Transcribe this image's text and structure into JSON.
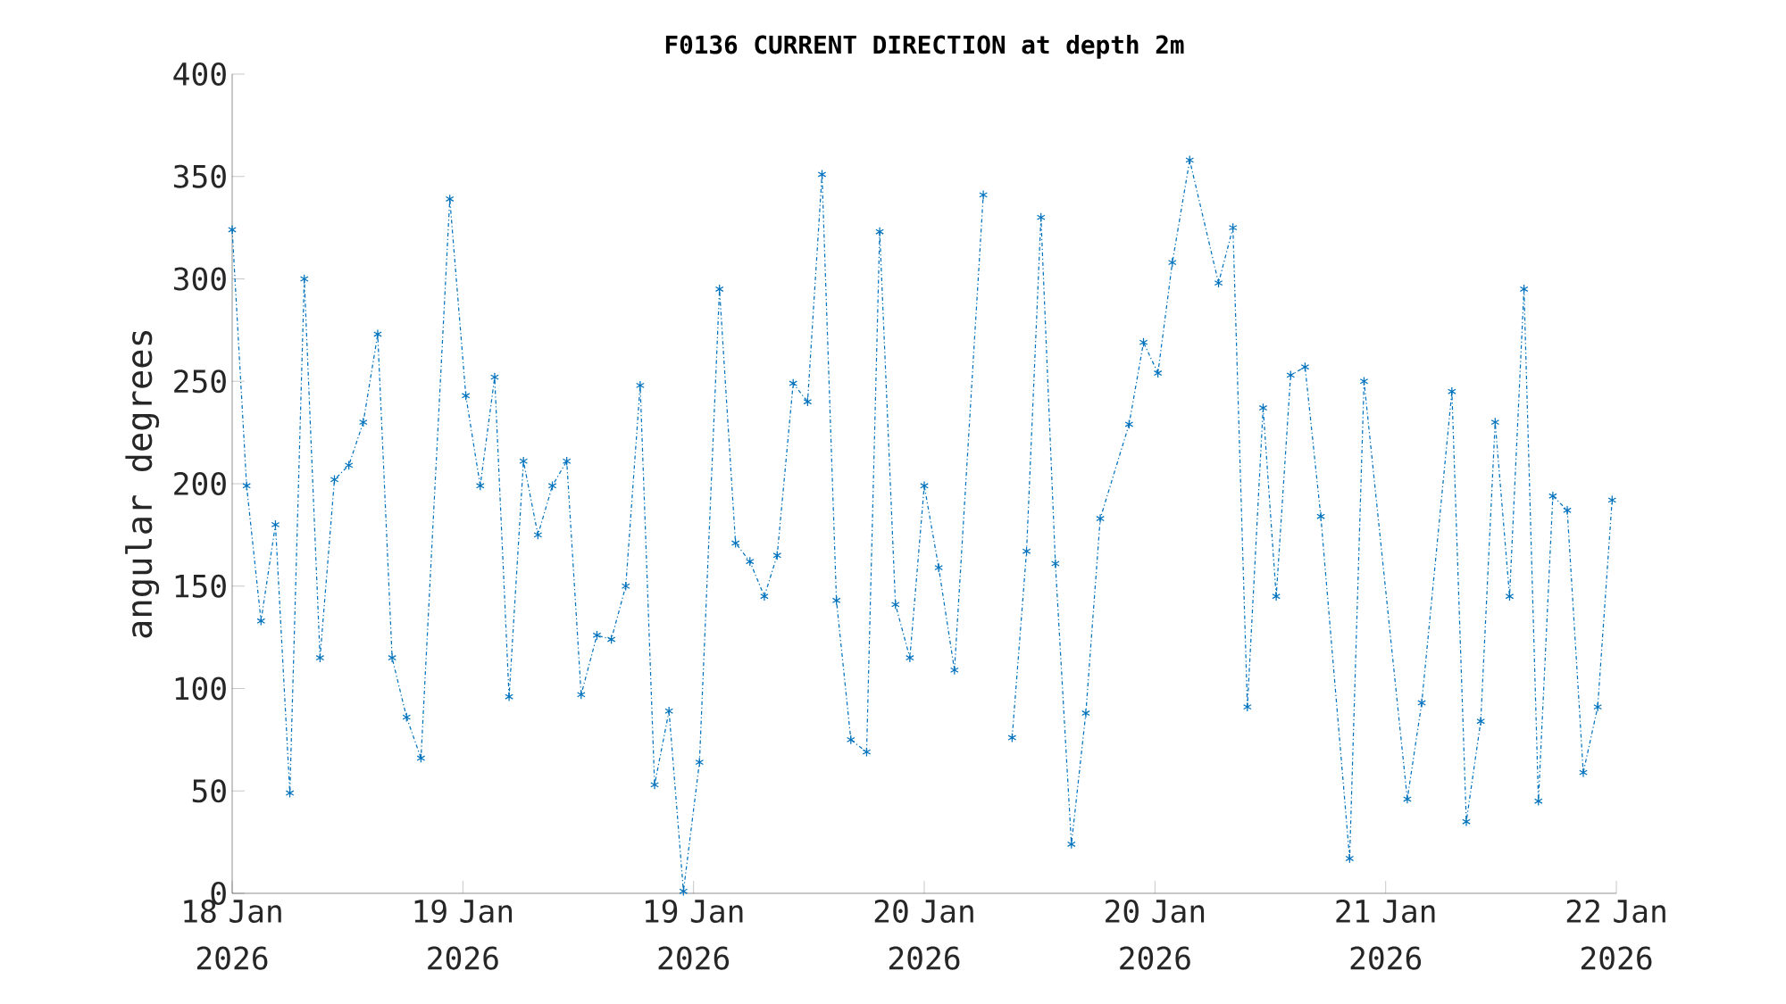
{
  "chart_data": {
    "type": "line",
    "title": "F0136 CURRENT DIRECTION at depth 2m",
    "ylabel": "angular degrees",
    "xlim": [
      "2026-01-18T12:00",
      "2026-01-22T02:24"
    ],
    "ylim": [
      0,
      400
    ],
    "xticks": [
      {
        "value": "2026-01-18T12:00",
        "label": "18 Jan 2026"
      },
      {
        "value": "2026-01-19T02:24",
        "label": "19 Jan 2026"
      },
      {
        "value": "2026-01-19T16:48",
        "label": "19 Jan 2026"
      },
      {
        "value": "2026-01-20T07:12",
        "label": "20 Jan 2026"
      },
      {
        "value": "2026-01-20T21:36",
        "label": "20 Jan 2026"
      },
      {
        "value": "2026-01-21T12:00",
        "label": "21 Jan 2026"
      },
      {
        "value": "2026-01-22T02:24",
        "label": "22 Jan 2026"
      }
    ],
    "yticks": [
      0,
      50,
      100,
      150,
      200,
      250,
      300,
      350,
      400
    ],
    "marker": "cross",
    "line_style": "dashdot",
    "series": [
      {
        "color": "#0072bd",
        "x": [
          "2026-01-18T12:00",
          "2026-01-18T12:54",
          "2026-01-18T13:48",
          "2026-01-18T14:42",
          "2026-01-18T15:36",
          "2026-01-18T16:30",
          "2026-01-18T17:29",
          "2026-01-18T18:23",
          "2026-01-18T19:17",
          "2026-01-18T20:11",
          "2026-01-18T21:05",
          "2026-01-18T21:59",
          "2026-01-18T22:53",
          "2026-01-18T23:47",
          "2026-01-19T01:35",
          "2026-01-19T02:35",
          "2026-01-19T03:29",
          "2026-01-19T04:23",
          "2026-01-19T05:17",
          "2026-01-19T06:11",
          "2026-01-19T07:05",
          "2026-01-19T07:59",
          "2026-01-19T08:53",
          "2026-01-19T09:47",
          "2026-01-19T10:46",
          "2026-01-19T11:40",
          "2026-01-19T12:34",
          "2026-01-19T13:28",
          "2026-01-19T14:22",
          "2026-01-19T15:16",
          "2026-01-19T16:10",
          "2026-01-19T17:10",
          "2026-01-19T18:25",
          "2026-01-19T19:25",
          "2026-01-19T20:19",
          "2026-01-19T21:13",
          "2026-01-19T22:01",
          "2026-01-19T23:01",
          "2026-01-19T23:55",
          "2026-01-20T00:49",
          "2026-01-20T01:43",
          "2026-01-20T02:37",
          "2026-01-20T03:36",
          "2026-01-20T04:25",
          "2026-01-20T05:24",
          "2026-01-20T06:18",
          "2026-01-20T07:12",
          "2026-01-20T08:06",
          "2026-01-20T09:05",
          "2026-01-20T10:53",
          "2026-01-20T11:47",
          "2026-01-20T12:41",
          "2026-01-20T13:35",
          "2026-01-20T14:29",
          "2026-01-20T15:23",
          "2026-01-20T16:23",
          "2026-01-20T17:17",
          "2026-01-20T18:11",
          "2026-01-20T19:59",
          "2026-01-20T20:53",
          "2026-01-20T21:47",
          "2026-01-20T22:41",
          "2026-01-20T23:46",
          "2026-01-21T01:34",
          "2026-01-21T02:28",
          "2026-01-21T03:22",
          "2026-01-21T04:21",
          "2026-01-21T05:10",
          "2026-01-21T06:04",
          "2026-01-21T06:58",
          "2026-01-21T07:57",
          "2026-01-21T09:45",
          "2026-01-21T10:39",
          "2026-01-21T13:21",
          "2026-01-21T14:15",
          "2026-01-21T16:08",
          "2026-01-21T17:02",
          "2026-01-21T17:56",
          "2026-01-21T18:50",
          "2026-01-21T19:44",
          "2026-01-21T20:38",
          "2026-01-21T21:32",
          "2026-01-21T22:26",
          "2026-01-21T23:20",
          "2026-01-22T00:20",
          "2026-01-22T01:14",
          "2026-01-22T02:08"
        ],
        "values": [
          324,
          199,
          133,
          180,
          49,
          300,
          115,
          202,
          209,
          230,
          273,
          115,
          86,
          66,
          339,
          243,
          199,
          252,
          96,
          211,
          175,
          199,
          211,
          97,
          126,
          124,
          150,
          248,
          53,
          89,
          1,
          64,
          295,
          171,
          162,
          145,
          165,
          249,
          240,
          351,
          143,
          75,
          69,
          323,
          141,
          115,
          199,
          159,
          109,
          341,
          null,
          76,
          167,
          330,
          161,
          24,
          88,
          183,
          229,
          269,
          254,
          308,
          358,
          298,
          325,
          91,
          237,
          145,
          253,
          257,
          184,
          17,
          250,
          46,
          93,
          245,
          35,
          84,
          230,
          145,
          295,
          45,
          194,
          187,
          59,
          91,
          192
        ]
      }
    ]
  }
}
